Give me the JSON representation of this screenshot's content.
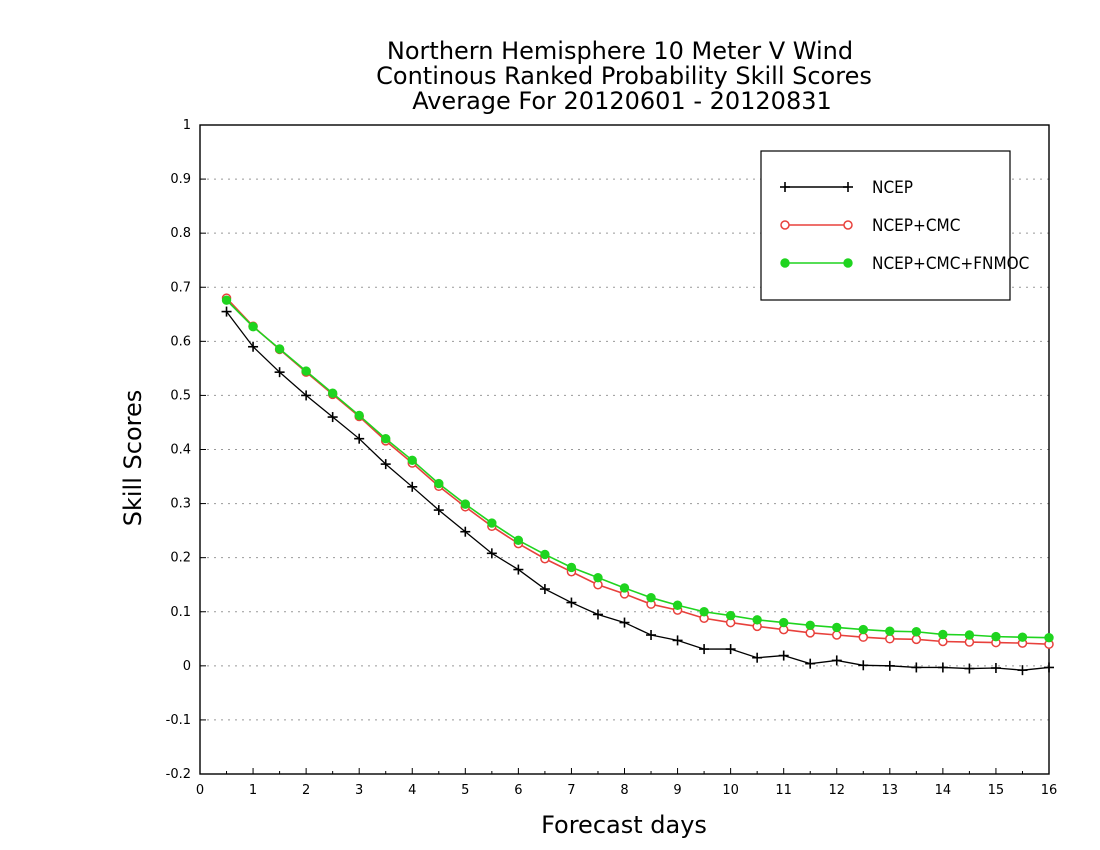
{
  "chart_data": {
    "type": "line",
    "title": [
      "Northern Hemisphere 10 Meter V Wind",
      "Continous Ranked Probability Skill Scores",
      "Average For 20120601 - 20120831"
    ],
    "xlabel": "Forecast days",
    "ylabel": "Skill Scores",
    "xlim": [
      0,
      16
    ],
    "ylim": [
      -0.2,
      1
    ],
    "xticks": [
      "0",
      "1",
      "2",
      "3",
      "4",
      "5",
      "6",
      "7",
      "8",
      "9",
      "10",
      "11",
      "12",
      "13",
      "14",
      "15",
      "16"
    ],
    "yticks": [
      "-0.2",
      "-0.1",
      "0",
      "0.1",
      "0.2",
      "0.3",
      "0.4",
      "0.5",
      "0.6",
      "0.7",
      "0.8",
      "0.9",
      "1"
    ],
    "grid": "horizontal dotted",
    "legend_position": "top-right",
    "x": [
      0.5,
      1,
      1.5,
      2,
      2.5,
      3,
      3.5,
      4,
      4.5,
      5,
      5.5,
      6,
      6.5,
      7,
      7.5,
      8,
      8.5,
      9,
      9.5,
      10,
      10.5,
      11,
      11.5,
      12,
      12.5,
      13,
      13.5,
      14,
      14.5,
      15,
      15.5,
      16
    ],
    "series": [
      {
        "name": "NCEP",
        "color": "#000000",
        "marker": "plus",
        "values": [
          0.655,
          0.59,
          0.543,
          0.5,
          0.46,
          0.42,
          0.373,
          0.331,
          0.288,
          0.248,
          0.208,
          0.178,
          0.142,
          0.117,
          0.095,
          0.08,
          0.057,
          0.047,
          0.031,
          0.031,
          0.015,
          0.019,
          0.004,
          0.01,
          0.001,
          0.0,
          -0.003,
          -0.003,
          -0.005,
          -0.004,
          -0.008,
          -0.003
        ]
      },
      {
        "name": "NCEP+CMC",
        "color": "#e8413c",
        "marker": "open-circle",
        "values": [
          0.68,
          0.628,
          0.585,
          0.543,
          0.502,
          0.461,
          0.416,
          0.375,
          0.332,
          0.294,
          0.258,
          0.226,
          0.198,
          0.174,
          0.15,
          0.133,
          0.114,
          0.103,
          0.088,
          0.08,
          0.073,
          0.067,
          0.061,
          0.057,
          0.053,
          0.05,
          0.049,
          0.045,
          0.044,
          0.043,
          0.042,
          0.04
        ]
      },
      {
        "name": "NCEP+CMC+FNMOC",
        "color": "#1fd41f",
        "marker": "filled-circle",
        "values": [
          0.676,
          0.627,
          0.586,
          0.545,
          0.504,
          0.463,
          0.42,
          0.38,
          0.337,
          0.299,
          0.264,
          0.232,
          0.206,
          0.182,
          0.163,
          0.144,
          0.126,
          0.112,
          0.1,
          0.093,
          0.085,
          0.08,
          0.075,
          0.071,
          0.067,
          0.064,
          0.063,
          0.058,
          0.057,
          0.054,
          0.053,
          0.052
        ]
      }
    ]
  }
}
